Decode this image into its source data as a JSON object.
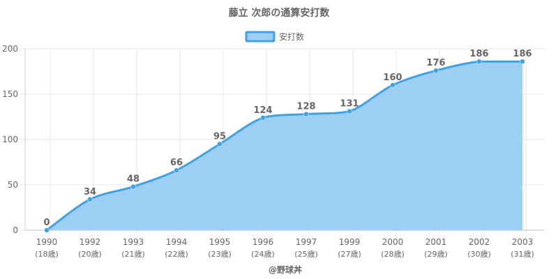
{
  "title": "藤立 次郎の通算安打数",
  "footer": "@野球丼",
  "colors": {
    "line": "#3fa1e6",
    "fill": "#9dcff5",
    "legend_fill": "#9dcff5",
    "legend_border": "#3fa1e6",
    "grid": "#e6e6e6",
    "text": "#666666"
  },
  "chart_data": {
    "type": "area",
    "title": "藤立 次郎の通算安打数",
    "categories": [
      "1990",
      "1992",
      "1993",
      "1994",
      "1995",
      "1996",
      "1997",
      "1999",
      "2000",
      "2001",
      "2002",
      "2003"
    ],
    "category_sublabels": [
      "(18歳)",
      "(20歳)",
      "(21歳)",
      "(22歳)",
      "(23歳)",
      "(24歳)",
      "(25歳)",
      "(27歳)",
      "(28歳)",
      "(29歳)",
      "(30歳)",
      "(31歳)"
    ],
    "series": [
      {
        "name": "安打数",
        "values": [
          0,
          34,
          48,
          66,
          95,
          124,
          128,
          131,
          160,
          176,
          186,
          186
        ]
      }
    ],
    "ylim": [
      0,
      200
    ],
    "yticks": [
      0,
      50,
      100,
      150,
      200
    ],
    "grid": true,
    "legend_position": "top-center",
    "data_labels": true
  }
}
